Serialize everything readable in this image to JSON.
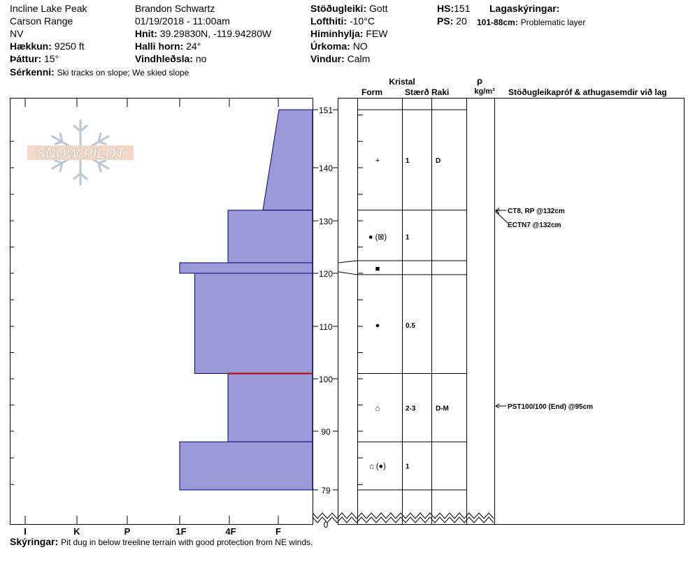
{
  "header": {
    "location": "Incline Lake Peak",
    "range": "Carson Range",
    "state": "NV",
    "elevation_label": "Hækkun:",
    "elevation": "9250 ft",
    "aspect_label": "Þáttur:",
    "aspect": "15°",
    "observer": "Brandon Schwartz",
    "datetime": "01/19/2018 - 11:00am",
    "coords_label": "Hnit:",
    "coords": "39.29830N, -119.94280W",
    "slope_label": "Halli horn:",
    "slope": "24°",
    "wind_loading_label": "Vindhleðsla:",
    "wind_loading": "no",
    "stability_label": "Stöðugleiki:",
    "stability": "Gott",
    "air_temp_label": "Lofthiti:",
    "air_temp": "-10°C",
    "sky_label": "Himinhylja:",
    "sky": "FEW",
    "precip_label": "Úrkoma:",
    "precip": "NO",
    "wind_label": "Vindur:",
    "wind": "Calm",
    "hs_label": "HS:",
    "hs": "151",
    "ps_label": "PS:",
    "ps": "20",
    "layer_notes_label": "Lagaskýringar:",
    "layer_note_depth": "101-88cm:",
    "layer_note_text": "Problematic layer",
    "features_label": "Sérkenni:",
    "features": "Ski tracks on slope; We skied slope",
    "notes_label": "Skýringar:",
    "notes": "Pit dug in below treeline terrain with good protection from NE winds."
  },
  "columns": {
    "crystal": "Kristal",
    "form": "Form",
    "size": "Stærð",
    "moisture": "Raki",
    "rho": "ρ",
    "density_unit": "kg/m³",
    "tests": "Stöðugleikapróf & athugasemdir við lag"
  },
  "logo": "SNOW PILOT",
  "chart_data": {
    "type": "snow-profile",
    "hardness_scale": [
      "I",
      "K",
      "P",
      "1F",
      "4F",
      "F"
    ],
    "hardness_axis_order": "decreasing hardness left to right",
    "depth_ticks": [
      151,
      140,
      130,
      120,
      110,
      100,
      90,
      79,
      0
    ],
    "snow_height_cm": 151,
    "layers": [
      {
        "top": 151,
        "bottom": 132,
        "hardness_top": 0.64,
        "hardness_bottom": 0.72,
        "form": "+",
        "size": "1",
        "moisture": "D"
      },
      {
        "top": 132,
        "bottom": 122,
        "hardness": 0.83,
        "form": "● (⊠)",
        "size": "1",
        "moisture": ""
      },
      {
        "top": 122,
        "bottom": 120,
        "hardness": 1.0,
        "form": "■",
        "size": "",
        "moisture": ""
      },
      {
        "top": 120,
        "bottom": 101,
        "hardness": 1.0,
        "form": "●",
        "size": "0.5",
        "moisture": ""
      },
      {
        "top": 101,
        "bottom": 88,
        "hardness": 1.0,
        "form": "⌂",
        "size": "2-3",
        "moisture": "D-M"
      },
      {
        "top": 88,
        "bottom": 79,
        "hardness": 1.0,
        "form": "⌂ (●)",
        "size": "1",
        "moisture": ""
      }
    ],
    "hardness_rendering": "bar_length_fraction_from_right",
    "layer_bar_fractions": [
      0.11,
      0.28,
      0.44,
      0.39,
      0.28,
      0.44
    ],
    "problematic_layer": {
      "top": 101,
      "bottom": 88
    },
    "tests": [
      {
        "depth": 132,
        "text": "CT8, RP @132cm"
      },
      {
        "depth": 132,
        "text": "ECTN7 @132cm"
      },
      {
        "depth": 95,
        "text": "PST100/100 (End) @95cm"
      }
    ]
  }
}
